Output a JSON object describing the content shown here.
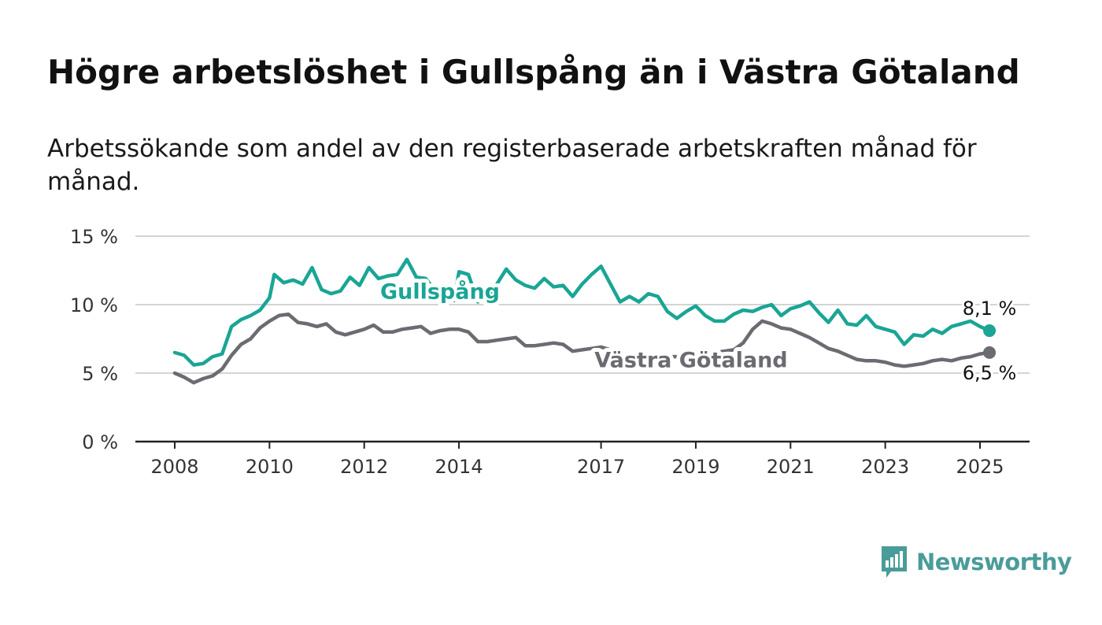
{
  "title": "Högre arbetslöshet i Gullspång än i Västra Götaland",
  "subtitle": "Arbetssökande som andel av den registerbaserade arbetskraften månad för månad.",
  "logo": {
    "text": "Newsworthy",
    "icon": "bar-chart-speech-bubble-icon",
    "color": "#4a9c9a"
  },
  "chart_data": {
    "type": "line",
    "title": "Högre arbetslöshet i Gullspång än i Västra Götaland",
    "subtitle": "Arbetssökande som andel av den registerbaserade arbetskraften månad för månad.",
    "xlabel": "",
    "ylabel": "",
    "ylim": [
      0,
      15
    ],
    "xlim": [
      2008,
      2025.2
    ],
    "grid": true,
    "y_ticks": [
      {
        "value": 0,
        "label": "0 %"
      },
      {
        "value": 5,
        "label": "5 %"
      },
      {
        "value": 10,
        "label": "10 %"
      },
      {
        "value": 15,
        "label": "15 %"
      }
    ],
    "x_ticks": [
      {
        "value": 2008,
        "label": "2008"
      },
      {
        "value": 2010,
        "label": "2010"
      },
      {
        "value": 2012,
        "label": "2012"
      },
      {
        "value": 2014,
        "label": "2014"
      },
      {
        "value": 2017,
        "label": "2017"
      },
      {
        "value": 2019,
        "label": "2019"
      },
      {
        "value": 2021,
        "label": "2021"
      },
      {
        "value": 2023,
        "label": "2023"
      },
      {
        "value": 2025,
        "label": "2025"
      }
    ],
    "series": [
      {
        "name": "Gullspång",
        "color": "#1aa595",
        "end_label": "8,1 %",
        "points": [
          [
            2008.0,
            6.5
          ],
          [
            2008.2,
            6.3
          ],
          [
            2008.4,
            5.6
          ],
          [
            2008.6,
            5.7
          ],
          [
            2008.8,
            6.2
          ],
          [
            2009.0,
            6.4
          ],
          [
            2009.2,
            8.4
          ],
          [
            2009.4,
            8.9
          ],
          [
            2009.6,
            9.2
          ],
          [
            2009.8,
            9.6
          ],
          [
            2010.0,
            10.5
          ],
          [
            2010.1,
            12.2
          ],
          [
            2010.3,
            11.6
          ],
          [
            2010.5,
            11.8
          ],
          [
            2010.7,
            11.5
          ],
          [
            2010.9,
            12.7
          ],
          [
            2011.1,
            11.1
          ],
          [
            2011.3,
            10.8
          ],
          [
            2011.5,
            11.0
          ],
          [
            2011.7,
            12.0
          ],
          [
            2011.9,
            11.4
          ],
          [
            2012.1,
            12.7
          ],
          [
            2012.3,
            11.9
          ],
          [
            2012.5,
            12.1
          ],
          [
            2012.7,
            12.2
          ],
          [
            2012.9,
            13.3
          ],
          [
            2013.1,
            12.0
          ],
          [
            2013.3,
            11.9
          ],
          [
            2013.5,
            11.0
          ],
          [
            2013.7,
            10.4
          ],
          [
            2013.9,
            10.3
          ],
          [
            2014.0,
            12.4
          ],
          [
            2014.2,
            12.2
          ],
          [
            2014.4,
            10.2
          ],
          [
            2014.6,
            10.6
          ],
          [
            2014.8,
            11.5
          ],
          [
            2015.0,
            12.6
          ],
          [
            2015.2,
            11.8
          ],
          [
            2015.4,
            11.4
          ],
          [
            2015.6,
            11.2
          ],
          [
            2015.8,
            11.9
          ],
          [
            2016.0,
            11.3
          ],
          [
            2016.2,
            11.4
          ],
          [
            2016.4,
            10.6
          ],
          [
            2016.6,
            11.5
          ],
          [
            2016.8,
            12.2
          ],
          [
            2017.0,
            12.8
          ],
          [
            2017.2,
            11.5
          ],
          [
            2017.4,
            10.2
          ],
          [
            2017.6,
            10.6
          ],
          [
            2017.8,
            10.2
          ],
          [
            2018.0,
            10.8
          ],
          [
            2018.2,
            10.6
          ],
          [
            2018.4,
            9.5
          ],
          [
            2018.6,
            9.0
          ],
          [
            2018.8,
            9.5
          ],
          [
            2019.0,
            9.9
          ],
          [
            2019.2,
            9.2
          ],
          [
            2019.4,
            8.8
          ],
          [
            2019.6,
            8.8
          ],
          [
            2019.8,
            9.3
          ],
          [
            2020.0,
            9.6
          ],
          [
            2020.2,
            9.5
          ],
          [
            2020.4,
            9.8
          ],
          [
            2020.6,
            10.0
          ],
          [
            2020.8,
            9.2
          ],
          [
            2021.0,
            9.7
          ],
          [
            2021.2,
            9.9
          ],
          [
            2021.4,
            10.2
          ],
          [
            2021.6,
            9.4
          ],
          [
            2021.8,
            8.7
          ],
          [
            2022.0,
            9.6
          ],
          [
            2022.2,
            8.6
          ],
          [
            2022.4,
            8.5
          ],
          [
            2022.6,
            9.2
          ],
          [
            2022.8,
            8.4
          ],
          [
            2023.0,
            8.2
          ],
          [
            2023.2,
            8.0
          ],
          [
            2023.4,
            7.1
          ],
          [
            2023.6,
            7.8
          ],
          [
            2023.8,
            7.7
          ],
          [
            2024.0,
            8.2
          ],
          [
            2024.2,
            7.9
          ],
          [
            2024.4,
            8.4
          ],
          [
            2024.6,
            8.6
          ],
          [
            2024.8,
            8.8
          ],
          [
            2025.0,
            8.4
          ],
          [
            2025.2,
            8.1
          ]
        ]
      },
      {
        "name": "Västra Götaland",
        "color": "#6b6b72",
        "end_label": "6,5 %",
        "points": [
          [
            2008.0,
            5.0
          ],
          [
            2008.2,
            4.7
          ],
          [
            2008.4,
            4.3
          ],
          [
            2008.6,
            4.6
          ],
          [
            2008.8,
            4.8
          ],
          [
            2009.0,
            5.3
          ],
          [
            2009.2,
            6.3
          ],
          [
            2009.4,
            7.1
          ],
          [
            2009.6,
            7.5
          ],
          [
            2009.8,
            8.3
          ],
          [
            2010.0,
            8.8
          ],
          [
            2010.2,
            9.2
          ],
          [
            2010.4,
            9.3
          ],
          [
            2010.6,
            8.7
          ],
          [
            2010.8,
            8.6
          ],
          [
            2011.0,
            8.4
          ],
          [
            2011.2,
            8.6
          ],
          [
            2011.4,
            8.0
          ],
          [
            2011.6,
            7.8
          ],
          [
            2011.8,
            8.0
          ],
          [
            2012.0,
            8.2
          ],
          [
            2012.2,
            8.5
          ],
          [
            2012.4,
            8.0
          ],
          [
            2012.6,
            8.0
          ],
          [
            2012.8,
            8.2
          ],
          [
            2013.0,
            8.3
          ],
          [
            2013.2,
            8.4
          ],
          [
            2013.4,
            7.9
          ],
          [
            2013.6,
            8.1
          ],
          [
            2013.8,
            8.2
          ],
          [
            2014.0,
            8.2
          ],
          [
            2014.2,
            8.0
          ],
          [
            2014.4,
            7.3
          ],
          [
            2014.6,
            7.3
          ],
          [
            2014.8,
            7.4
          ],
          [
            2015.0,
            7.5
          ],
          [
            2015.2,
            7.6
          ],
          [
            2015.4,
            7.0
          ],
          [
            2015.6,
            7.0
          ],
          [
            2015.8,
            7.1
          ],
          [
            2016.0,
            7.2
          ],
          [
            2016.2,
            7.1
          ],
          [
            2016.4,
            6.6
          ],
          [
            2016.6,
            6.7
          ],
          [
            2016.8,
            6.8
          ],
          [
            2017.0,
            6.9
          ],
          [
            2017.2,
            6.7
          ],
          [
            2017.4,
            6.4
          ],
          [
            2017.6,
            6.2
          ],
          [
            2017.8,
            6.0
          ],
          [
            2018.0,
            6.0
          ],
          [
            2018.2,
            6.0
          ],
          [
            2018.4,
            6.2
          ],
          [
            2018.6,
            6.2
          ],
          [
            2018.8,
            6.3
          ],
          [
            2019.0,
            6.3
          ],
          [
            2019.2,
            6.4
          ],
          [
            2019.4,
            6.5
          ],
          [
            2019.6,
            6.6
          ],
          [
            2019.8,
            6.7
          ],
          [
            2020.0,
            7.2
          ],
          [
            2020.2,
            8.2
          ],
          [
            2020.4,
            8.8
          ],
          [
            2020.6,
            8.6
          ],
          [
            2020.8,
            8.3
          ],
          [
            2021.0,
            8.2
          ],
          [
            2021.2,
            7.9
          ],
          [
            2021.4,
            7.6
          ],
          [
            2021.6,
            7.2
          ],
          [
            2021.8,
            6.8
          ],
          [
            2022.0,
            6.6
          ],
          [
            2022.2,
            6.3
          ],
          [
            2022.4,
            6.0
          ],
          [
            2022.6,
            5.9
          ],
          [
            2022.8,
            5.9
          ],
          [
            2023.0,
            5.8
          ],
          [
            2023.2,
            5.6
          ],
          [
            2023.4,
            5.5
          ],
          [
            2023.6,
            5.6
          ],
          [
            2023.8,
            5.7
          ],
          [
            2024.0,
            5.9
          ],
          [
            2024.2,
            6.0
          ],
          [
            2024.4,
            5.9
          ],
          [
            2024.6,
            6.1
          ],
          [
            2024.8,
            6.2
          ],
          [
            2025.0,
            6.4
          ],
          [
            2025.2,
            6.5
          ]
        ]
      }
    ],
    "series_labels": [
      {
        "series": "Gullspång",
        "text": "Gullspång",
        "x": 2013.6,
        "y": 11.0
      },
      {
        "series": "Västra Götaland",
        "text": "Västra Götaland",
        "x": 2018.9,
        "y": 6.0
      }
    ]
  }
}
